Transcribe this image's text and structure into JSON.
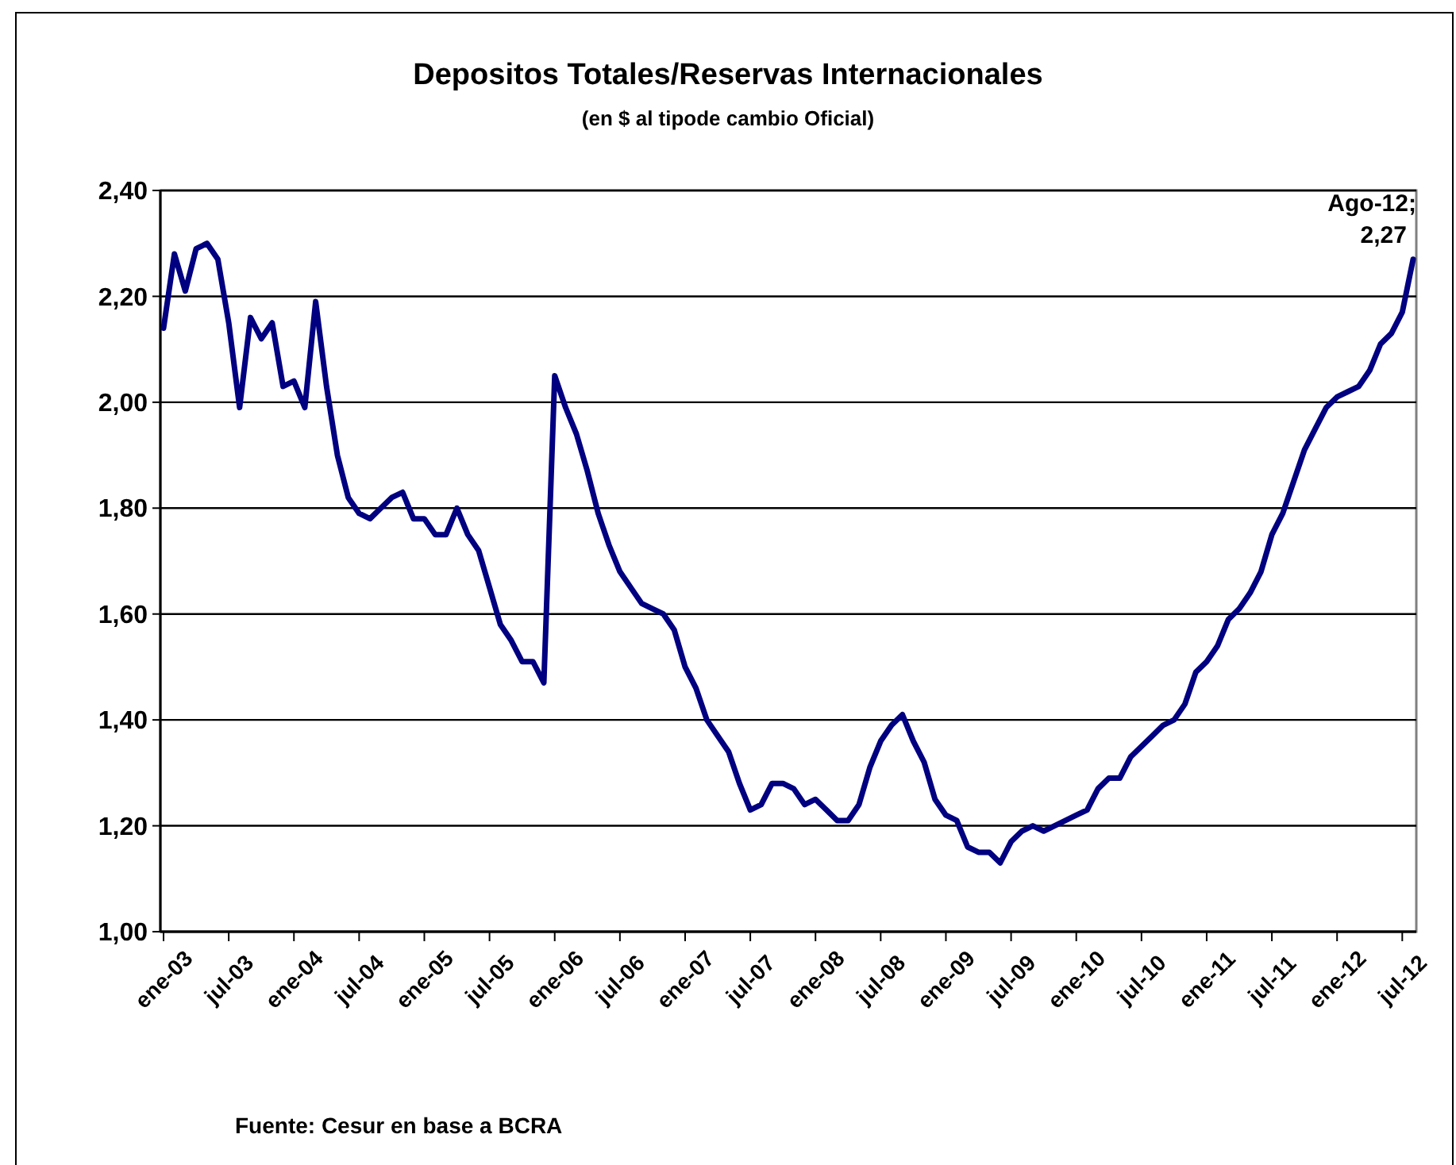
{
  "chart_data": {
    "type": "line",
    "title": "Depositos Totales/Reservas Internacionales",
    "subtitle": "(en $ al tipode cambio Oficial)",
    "categories": [
      "ene-03",
      null,
      null,
      null,
      null,
      null,
      "jul-03",
      null,
      null,
      null,
      null,
      null,
      "ene-04",
      null,
      null,
      null,
      null,
      null,
      "jul-04",
      null,
      null,
      null,
      null,
      null,
      "ene-05",
      null,
      null,
      null,
      null,
      null,
      "jul-05",
      null,
      null,
      null,
      null,
      null,
      "ene-06",
      null,
      null,
      null,
      null,
      null,
      "jul-06",
      null,
      null,
      null,
      null,
      null,
      "ene-07",
      null,
      null,
      null,
      null,
      null,
      "jul-07",
      null,
      null,
      null,
      null,
      null,
      "ene-08",
      null,
      null,
      null,
      null,
      null,
      "jul-08",
      null,
      null,
      null,
      null,
      null,
      "ene-09",
      null,
      null,
      null,
      null,
      null,
      "jul-09",
      null,
      null,
      null,
      null,
      null,
      "ene-10",
      null,
      null,
      null,
      null,
      null,
      "jul-10",
      null,
      null,
      null,
      null,
      null,
      "ene-11",
      null,
      null,
      null,
      null,
      null,
      "jul-11",
      null,
      null,
      null,
      null,
      null,
      "ene-12",
      null,
      null,
      null,
      null,
      null,
      "jul-12",
      null
    ],
    "series": [
      {
        "color": "#000080",
        "values": [
          2.14,
          2.28,
          2.21,
          2.29,
          2.3,
          2.27,
          2.15,
          1.99,
          2.16,
          2.12,
          2.15,
          2.03,
          2.04,
          1.99,
          2.19,
          2.03,
          1.9,
          1.82,
          1.79,
          1.78,
          1.8,
          1.82,
          1.83,
          1.78,
          1.78,
          1.75,
          1.75,
          1.8,
          1.75,
          1.72,
          1.65,
          1.58,
          1.55,
          1.51,
          1.51,
          1.47,
          2.05,
          1.99,
          1.94,
          1.87,
          1.79,
          1.73,
          1.68,
          1.65,
          1.62,
          1.61,
          1.6,
          1.57,
          1.5,
          1.46,
          1.4,
          1.37,
          1.34,
          1.28,
          1.23,
          1.24,
          1.28,
          1.28,
          1.27,
          1.24,
          1.25,
          1.23,
          1.21,
          1.21,
          1.24,
          1.31,
          1.36,
          1.39,
          1.41,
          1.36,
          1.32,
          1.25,
          1.22,
          1.21,
          1.16,
          1.15,
          1.15,
          1.13,
          1.17,
          1.19,
          1.2,
          1.19,
          1.2,
          1.21,
          1.22,
          1.23,
          1.27,
          1.29,
          1.29,
          1.33,
          1.35,
          1.37,
          1.39,
          1.4,
          1.43,
          1.49,
          1.51,
          1.54,
          1.59,
          1.61,
          1.64,
          1.68,
          1.75,
          1.79,
          1.85,
          1.91,
          1.95,
          1.99,
          2.01,
          2.02,
          2.03,
          2.06,
          2.11,
          2.13,
          2.17,
          2.27
        ]
      }
    ],
    "ylim": [
      1.0,
      2.4
    ],
    "yticks": [
      {
        "value": 1.0,
        "label": "1,00"
      },
      {
        "value": 1.2,
        "label": "1,20"
      },
      {
        "value": 1.4,
        "label": "1,40"
      },
      {
        "value": 1.6,
        "label": "1,60"
      },
      {
        "value": 1.8,
        "label": "1,80"
      },
      {
        "value": 2.0,
        "label": "2,00"
      },
      {
        "value": 2.2,
        "label": "2,20"
      },
      {
        "value": 2.4,
        "label": "2,40"
      }
    ],
    "grid": "y",
    "marker": "none",
    "line_style": "solid",
    "annotations": [
      "Ago-12; 2,27",
      "Fuente: Cesur en base a BCRA"
    ]
  }
}
